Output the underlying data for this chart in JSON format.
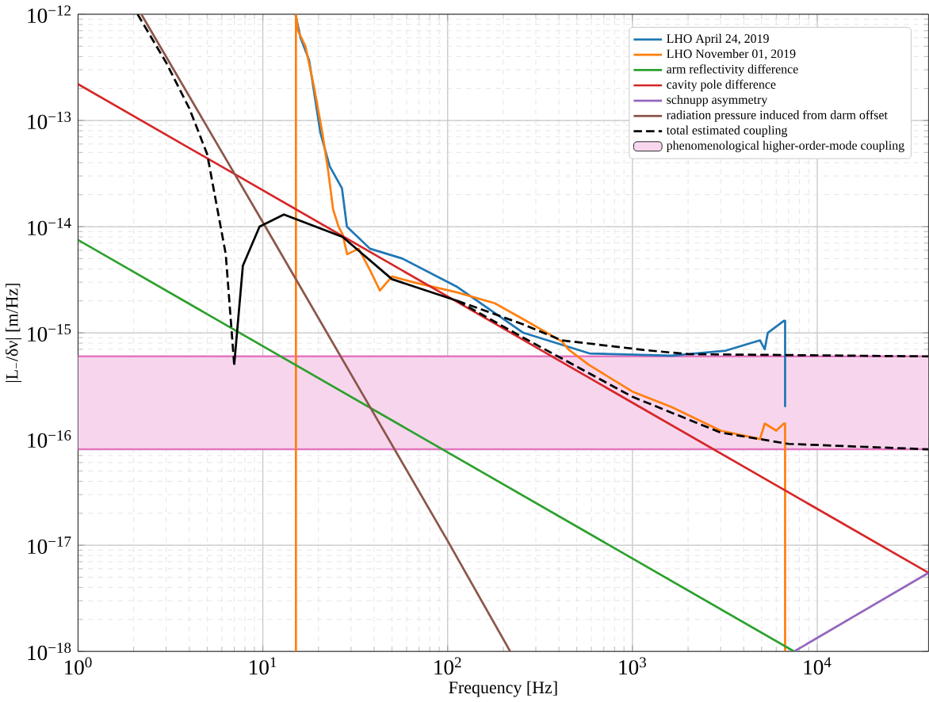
{
  "chart_data": {
    "type": "line",
    "xlabel": "Frequency [Hz]",
    "ylabel": "|L$_{−}$/δν| [m/Hz]",
    "log": "xy",
    "grid": true,
    "legend": "top right",
    "xlim": [
      1,
      40000
    ],
    "ylim": [
      1e-18,
      1e-12
    ],
    "xticks": [
      {
        "value": 1,
        "label": "10$^{0}$"
      },
      {
        "value": 10,
        "label": "10$^{1}$"
      },
      {
        "value": 100,
        "label": "10$^{2}$"
      },
      {
        "value": 1000,
        "label": "10$^{3}$"
      },
      {
        "value": 10000,
        "label": "10$^{4}$"
      }
    ],
    "yticks": [
      {
        "value": 1e-18,
        "label": "10$^{−18}$"
      },
      {
        "value": 1e-17,
        "label": "10$^{−17}$"
      },
      {
        "value": 1e-16,
        "label": "10$^{−16}$"
      },
      {
        "value": 1e-15,
        "label": "10$^{−15}$"
      },
      {
        "value": 1e-14,
        "label": "10$^{−14}$"
      },
      {
        "value": 1e-13,
        "label": "10$^{−13}$"
      },
      {
        "value": 1e-12,
        "label": "10$^{−12}$"
      }
    ],
    "series": [
      {
        "name": "LHO April 24, 2019",
        "color": "#1f77b4",
        "line_style": "solid",
        "x": [
          15,
          16,
          17.8,
          20.5,
          23,
          26.8,
          28.5,
          38,
          57,
          113,
          257,
          585,
          1630,
          3200,
          4900,
          5200,
          5400,
          6600,
          6700,
          6700
        ],
        "values": [
          1e-12,
          6e-13,
          3.7e-13,
          7.6e-14,
          3.7e-14,
          2.3e-14,
          1e-14,
          6.2e-15,
          5e-15,
          2.7e-15,
          1e-15,
          6.4e-16,
          6.1e-16,
          6.8e-16,
          8.5e-16,
          7e-16,
          1e-15,
          1.3e-15,
          1.3e-15,
          2e-16
        ]
      },
      {
        "name": "LHO November 01, 2019",
        "color": "#ff7f0e",
        "line_style": "solid",
        "x": [
          15.1,
          15.1,
          15.5,
          17,
          19,
          21,
          22.6,
          24,
          25.7,
          27,
          28.6,
          33,
          38,
          43,
          50,
          65,
          113,
          180,
          265,
          415,
          450,
          580,
          1000,
          1630,
          3000,
          4900,
          5200,
          6000,
          6600,
          6700,
          6700
        ],
        "values": [
          1e-18,
          1e-12,
          7e-13,
          5e-13,
          2e-13,
          7.6e-14,
          3.3e-14,
          1.45e-14,
          1e-14,
          8.5e-15,
          5.5e-15,
          6.2e-15,
          3.9e-15,
          2.5e-15,
          3.4e-15,
          3e-15,
          2.4e-15,
          1.9e-15,
          1.3e-15,
          8.3e-16,
          7e-16,
          5e-16,
          2.8e-16,
          2e-16,
          1.2e-16,
          1e-16,
          1.4e-16,
          1.2e-16,
          1.4e-16,
          1.4e-16,
          1e-18
        ]
      },
      {
        "name": "arm reflectivity difference",
        "color": "#2ca02c",
        "line_style": "solid",
        "x": [
          1,
          10,
          100,
          1000,
          7500
        ],
        "values": [
          7.5e-15,
          7.5e-16,
          7.5e-17,
          7.5e-18,
          1e-18
        ]
      },
      {
        "name": "cavity pole difference",
        "color": "#d62728",
        "line_style": "solid",
        "x": [
          1,
          10,
          100,
          1000,
          10000,
          40000
        ],
        "values": [
          2.2e-13,
          2.2e-14,
          2.2e-15,
          2.2e-16,
          2.2e-17,
          5.5e-18
        ]
      },
      {
        "name": "schnupp asymmetry",
        "color": "#9467bd",
        "line_style": "solid",
        "x": [
          7500,
          40000
        ],
        "values": [
          1e-18,
          5.5e-18
        ]
      },
      {
        "name": "radiation pressure induced from darm offset",
        "color": "#8c564b",
        "line_style": "solid",
        "x": [
          2.2,
          10,
          100,
          218
        ],
        "values": [
          1e-12,
          1.1e-14,
          1.1e-17,
          1e-18
        ]
      },
      {
        "name": "total estimated coupling",
        "color": "#000000",
        "line_style": "dashed",
        "x": [
          2.1,
          3,
          4,
          5,
          6.3,
          7
        ],
        "values": [
          1e-12,
          3.5e-13,
          1.3e-13,
          4.8e-14,
          5.5e-15,
          5e-16
        ]
      },
      {
        "color": "#000000",
        "line_style": "solid",
        "x": [
          7,
          7.8,
          9.6,
          13,
          27,
          50,
          113
        ],
        "values": [
          5e-16,
          4.3e-15,
          1e-14,
          1.3e-14,
          8e-15,
          3.2e-15,
          2e-15
        ]
      },
      {
        "color": "#000000",
        "line_style": "dashed",
        "x": [
          113,
          257,
          415,
          1150,
          2000,
          40000
        ],
        "values": [
          2e-15,
          1.2e-15,
          8.5e-16,
          6.9e-16,
          6.3e-16,
          6e-16
        ]
      },
      {
        "color": "#000000",
        "line_style": "dashed",
        "x": [
          113,
          257,
          1000,
          3000,
          7000,
          40000
        ],
        "values": [
          2e-15,
          9e-16,
          2.5e-16,
          1.15e-16,
          9e-17,
          8e-17
        ]
      }
    ],
    "bands": [
      {
        "axis": "y",
        "from": 8e-17,
        "to": 6e-16,
        "label": "phenomenological higher-order-mode coupling",
        "color": "#f7d6ed"
      }
    ],
    "ref_lines": [
      {
        "axis": "y",
        "value": 8e-17,
        "color": "#e377c2"
      },
      {
        "axis": "y",
        "value": 6e-16,
        "color": "#e377c2"
      }
    ]
  }
}
